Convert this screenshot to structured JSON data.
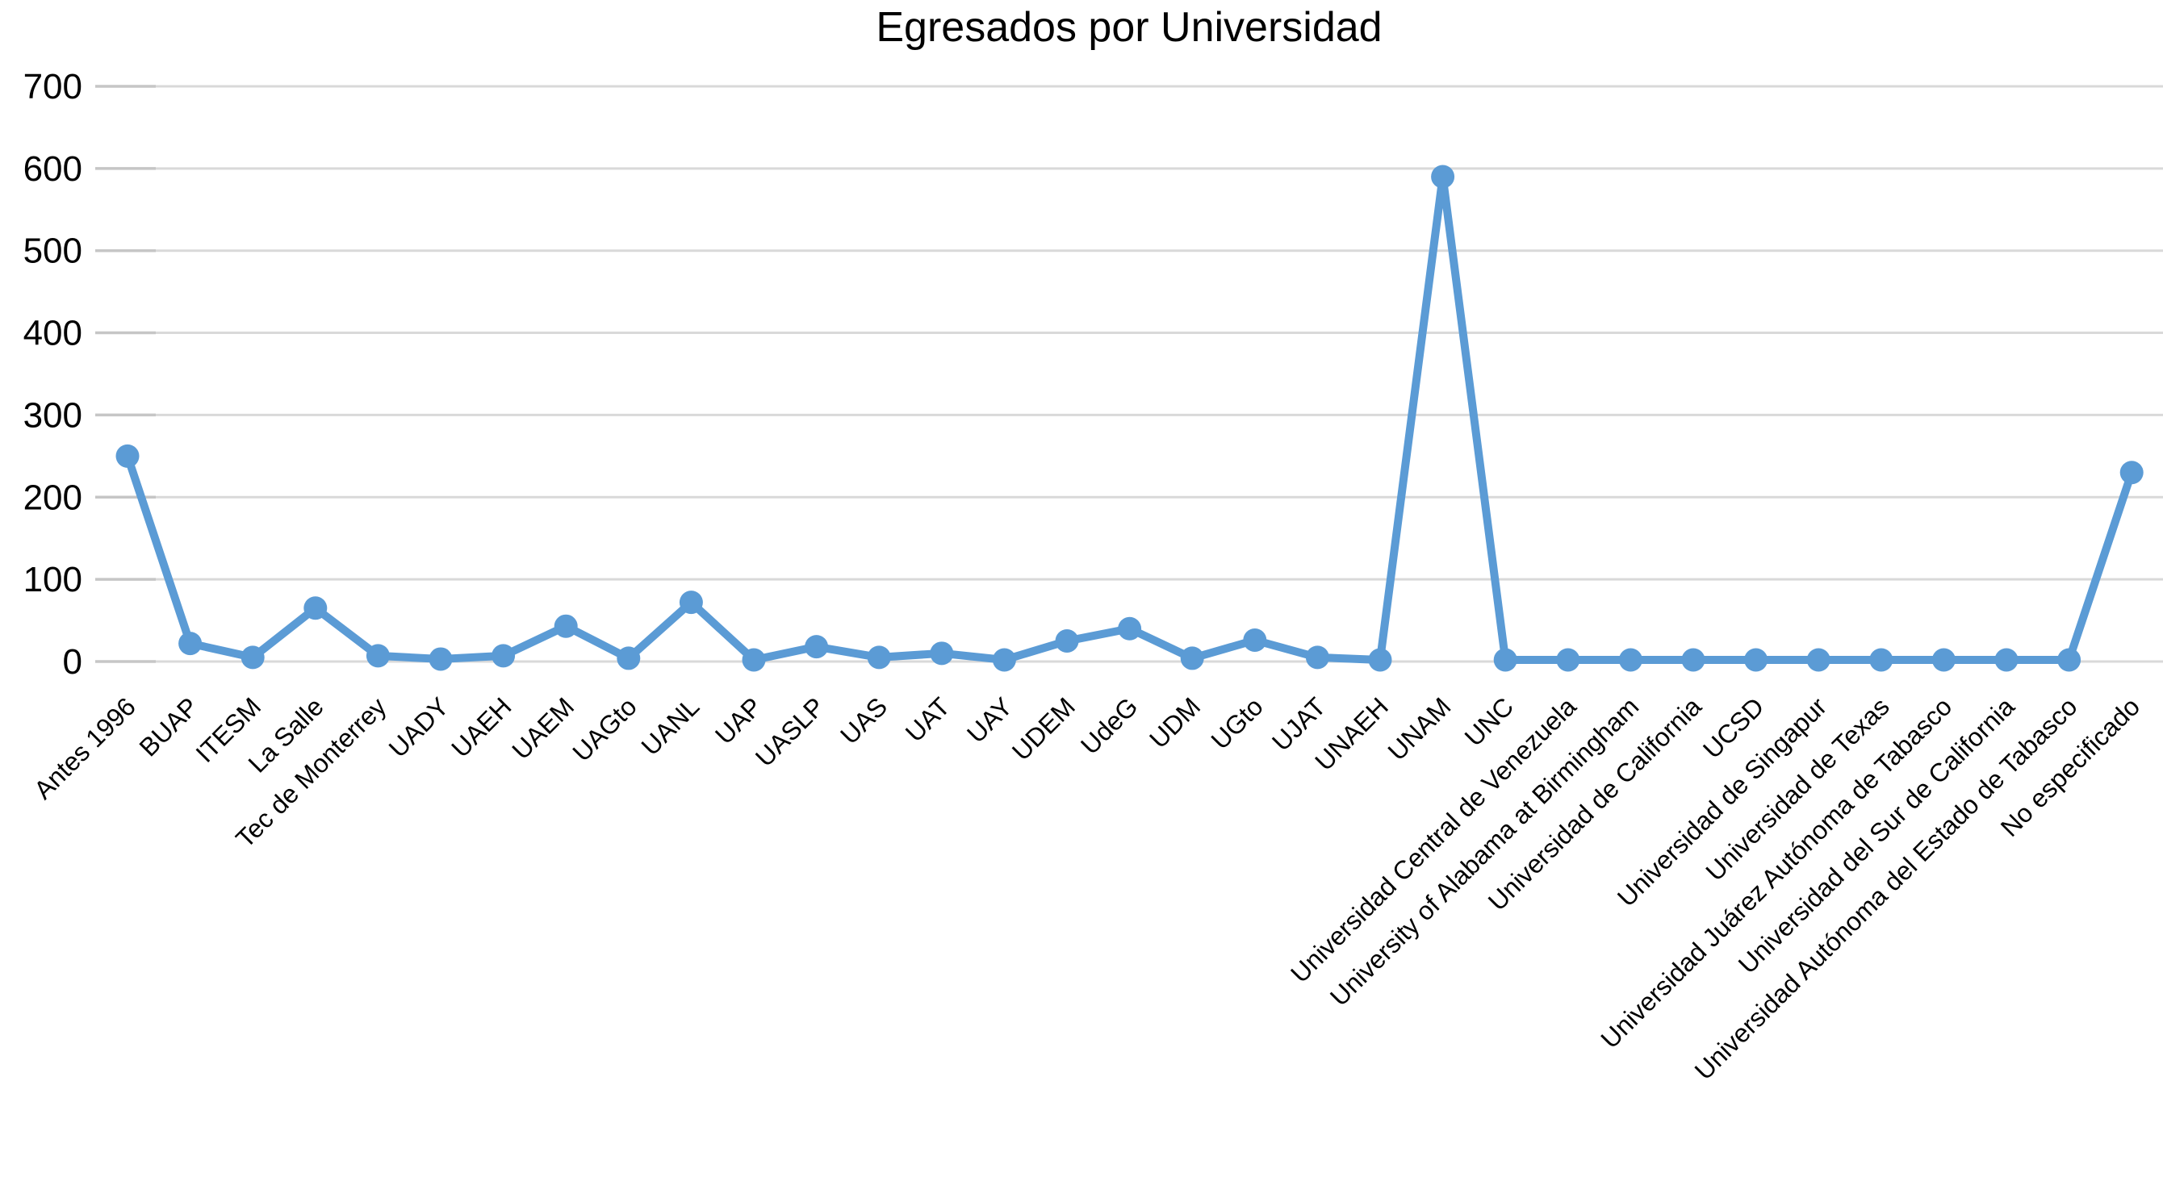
{
  "figure": {
    "title": "Egresados por Universidad"
  },
  "chart_data": {
    "type": "line",
    "title": "Egresados por Universidad",
    "categories": [
      "Antes 1996",
      "BUAP",
      "ITESM",
      "La Salle",
      "Tec de Monterrey",
      "UADY",
      "UAEH",
      "UAEM",
      "UAGto",
      "UANL",
      "UAP",
      "UASLP",
      "UAS",
      "UAT",
      "UAY",
      "UDEM",
      "UdeG",
      "UDM",
      "UGto",
      "UJAT",
      "UNAEH",
      "UNAM",
      "UNC",
      "Universidad Central de Venezuela",
      "University of Alabama at Birmingham",
      "Universidad de California",
      "UCSD",
      "Universidad de Singapur",
      "Universidad de Texas",
      "Universidad Juárez Autónoma de Tabasco",
      "Universidad del Sur de California",
      "Universidad Autónoma del Estado de Tabasco",
      "No especificado"
    ],
    "values": [
      250,
      22,
      5,
      65,
      7,
      3,
      7,
      43,
      4,
      72,
      2,
      18,
      5,
      10,
      2,
      25,
      40,
      4,
      26,
      5,
      2,
      590,
      2,
      2,
      2,
      2,
      2,
      2,
      2,
      2,
      2,
      2,
      230
    ],
    "xlabel": "",
    "ylabel": "",
    "ylim": [
      0,
      700
    ],
    "yticks": [
      0,
      100,
      200,
      300,
      400,
      500,
      600,
      700
    ],
    "grid": true,
    "legend": false,
    "x_label_rotation_deg": 45,
    "line_color": "#5B9BD5",
    "marker": "circle",
    "grid_color": "#D9D9D9",
    "tick_color": "#C6C6C6",
    "text_color": "#000000",
    "background_color": "#FFFFFF"
  }
}
